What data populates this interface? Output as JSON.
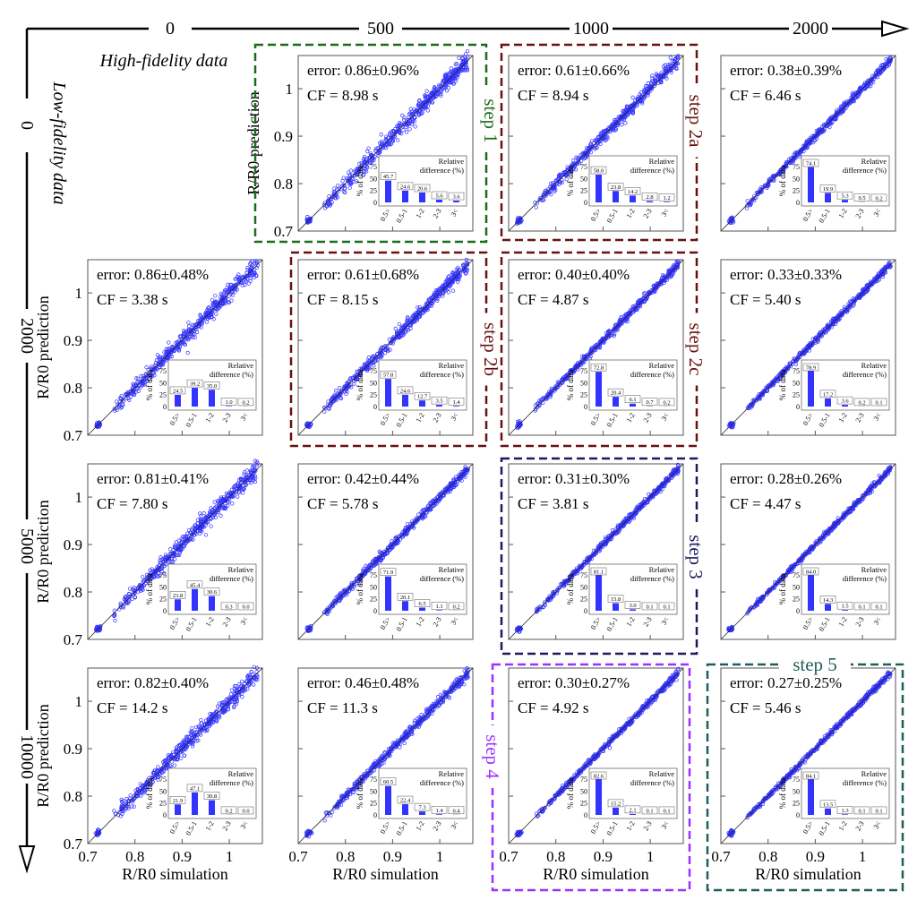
{
  "chart_data": {
    "type": "scatter",
    "top_axis": {
      "label": "High-fidelity data",
      "ticks": [
        "0",
        "500",
        "1000",
        "2000"
      ]
    },
    "left_axis": {
      "label": "Low-fidelity data",
      "ticks": [
        "0",
        "2000",
        "5000",
        "10000"
      ]
    },
    "xlabel": "R/R0 simulation",
    "ylabel": "R/R0 prediction",
    "xlim": [
      0.7,
      1.07
    ],
    "ylim": [
      0.7,
      1.07
    ],
    "ticks": [
      "0.7",
      "0.8",
      "0.9",
      "1"
    ],
    "inset": {
      "title_line1": "Relative",
      "title_line2": "difference (%)",
      "ylabel": "% of data",
      "categories": [
        "0.5>",
        "0.5-1",
        "1-2",
        "2-3",
        "3<"
      ],
      "yticks": [
        "0",
        "25",
        "50",
        "75"
      ]
    },
    "point_color": "#3333ff",
    "panels": [
      {
        "row": 0,
        "col": 1,
        "error": "error: 0.86±0.96%",
        "cf": "CF = 8.98 s",
        "bars": [
          45.7,
          24.6,
          20.6,
          5.6,
          3.6
        ]
      },
      {
        "row": 0,
        "col": 2,
        "error": "error: 0.61±0.66%",
        "cf": "CF = 8.94 s",
        "bars": [
          58.0,
          23.8,
          14.2,
          2.8,
          1.2
        ]
      },
      {
        "row": 0,
        "col": 3,
        "error": "error: 0.38±0.39%",
        "cf": "CF = 6.46 s",
        "bars": [
          74.1,
          19.9,
          5.3,
          0.5,
          0.2
        ]
      },
      {
        "row": 1,
        "col": 0,
        "error": "error: 0.86±0.48%",
        "cf": "CF = 3.38 s",
        "bars": [
          24.5,
          39.2,
          35.0,
          1.0,
          0.2
        ]
      },
      {
        "row": 1,
        "col": 1,
        "error": "error: 0.61±0.68%",
        "cf": "CF = 8.15 s",
        "bars": [
          57.8,
          24.6,
          12.7,
          3.5,
          1.4
        ]
      },
      {
        "row": 1,
        "col": 2,
        "error": "error: 0.40±0.40%",
        "cf": "CF = 4.87 s",
        "bars": [
          72.8,
          20.4,
          6.1,
          0.7,
          0.2
        ]
      },
      {
        "row": 1,
        "col": 3,
        "error": "error: 0.33±0.33%",
        "cf": "CF = 5.40 s",
        "bars": [
          78.9,
          17.2,
          3.6,
          0.2,
          0.1
        ]
      },
      {
        "row": 2,
        "col": 0,
        "error": "error: 0.81±0.41%",
        "cf": "CF = 7.80 s",
        "bars": [
          23.8,
          45.4,
          30.6,
          0.3,
          0.0
        ]
      },
      {
        "row": 2,
        "col": 1,
        "error": "error: 0.42±0.44%",
        "cf": "CF = 5.78 s",
        "bars": [
          71.9,
          20.1,
          6.5,
          1.1,
          0.2
        ]
      },
      {
        "row": 2,
        "col": 2,
        "error": "error: 0.31±0.30%",
        "cf": "CF = 3.81 s",
        "bars": [
          81.1,
          15.8,
          3.0,
          0.1,
          0.1
        ]
      },
      {
        "row": 2,
        "col": 3,
        "error": "error: 0.28±0.26%",
        "cf": "CF = 4.47 s",
        "bars": [
          84.0,
          14.3,
          1.5,
          0.1,
          0.1
        ]
      },
      {
        "row": 3,
        "col": 0,
        "error": "error: 0.82±0.40%",
        "cf": "CF = 14.2 s",
        "bars": [
          21.9,
          47.1,
          30.8,
          0.2,
          0.0
        ]
      },
      {
        "row": 3,
        "col": 1,
        "error": "error: 0.46±0.48%",
        "cf": "CF = 11.3 s",
        "bars": [
          60.5,
          22.4,
          7.3,
          1.4,
          0.4
        ]
      },
      {
        "row": 3,
        "col": 2,
        "error": "error: 0.30±0.27%",
        "cf": "CF = 4.92 s",
        "bars": [
          82.6,
          15.2,
          2.1,
          0.1,
          0.1
        ]
      },
      {
        "row": 3,
        "col": 3,
        "error": "error: 0.27±0.25%",
        "cf": "CF = 5.46 s",
        "bars": [
          84.1,
          13.5,
          1.3,
          0.1,
          0.1
        ]
      }
    ],
    "steps": [
      {
        "label": "step 1",
        "color": "#1a6b1a"
      },
      {
        "label": "step 2a",
        "color": "#6b1010"
      },
      {
        "label": "step 2b",
        "color": "#6b1010"
      },
      {
        "label": "step 2c",
        "color": "#6b1010"
      },
      {
        "label": "step 3",
        "color": "#1a1a5e"
      },
      {
        "label": "step 4",
        "color": "#9b30ff"
      },
      {
        "label": "step 5",
        "color": "#1f5f5a"
      }
    ]
  }
}
